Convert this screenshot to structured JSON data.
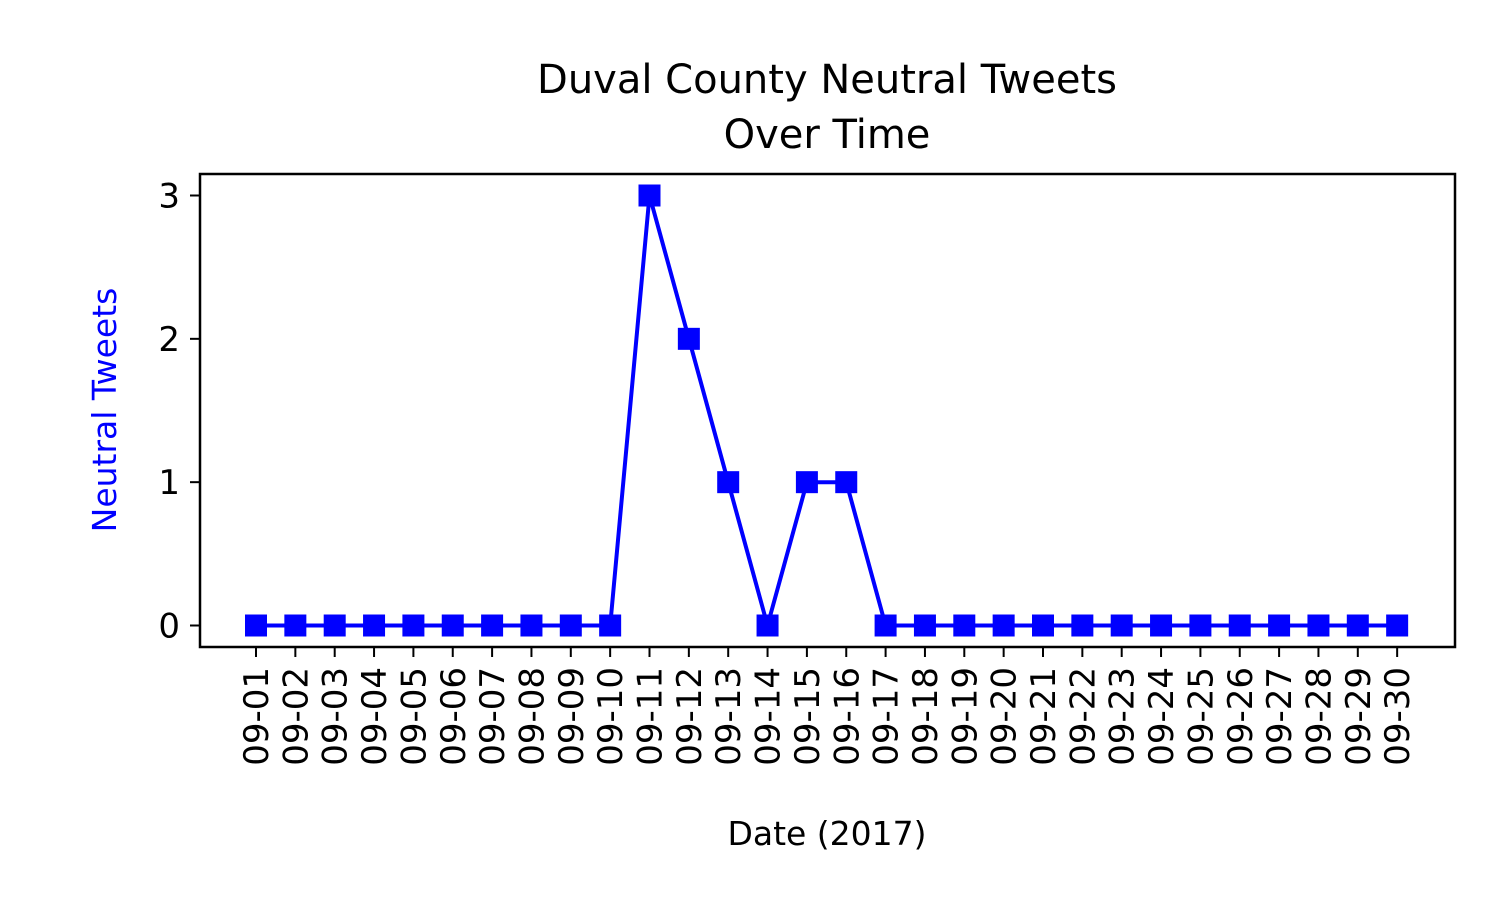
{
  "chart_data": {
    "type": "line",
    "title_line1": "Duval County Neutral Tweets",
    "title_line2": "Over Time",
    "xlabel": "Date (2017)",
    "ylabel": "Neutral Tweets",
    "ylabel_color": "#0000ff",
    "line_color": "#0000ff",
    "marker": "square",
    "grid": false,
    "legend": "none",
    "ylim": [
      -0.15,
      3.15
    ],
    "yticks": [
      0,
      1,
      2,
      3
    ],
    "categories": [
      "09-01",
      "09-02",
      "09-03",
      "09-04",
      "09-05",
      "09-06",
      "09-07",
      "09-08",
      "09-09",
      "09-10",
      "09-11",
      "09-12",
      "09-13",
      "09-14",
      "09-15",
      "09-16",
      "09-17",
      "09-18",
      "09-19",
      "09-20",
      "09-21",
      "09-22",
      "09-23",
      "09-24",
      "09-25",
      "09-26",
      "09-27",
      "09-28",
      "09-29",
      "09-30"
    ],
    "values": [
      0,
      0,
      0,
      0,
      0,
      0,
      0,
      0,
      0,
      0,
      3,
      2,
      1,
      0,
      1,
      1,
      0,
      0,
      0,
      0,
      0,
      0,
      0,
      0,
      0,
      0,
      0,
      0,
      0,
      0
    ]
  }
}
